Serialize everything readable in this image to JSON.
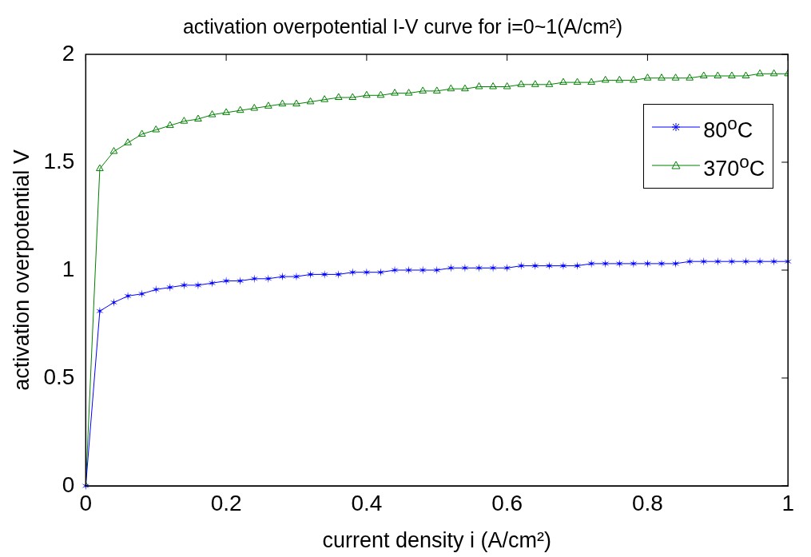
{
  "chart_data": {
    "type": "line",
    "title": "activation overpotential I-V curve for i=0~1(A/cm²)",
    "xlabel": "current density i (A/cm²)",
    "ylabel": "activation overpotential V",
    "x": [
      0,
      0.02,
      0.04,
      0.06,
      0.08,
      0.1,
      0.12,
      0.14,
      0.16,
      0.18,
      0.2,
      0.22,
      0.24,
      0.26,
      0.28,
      0.3,
      0.32,
      0.34,
      0.36,
      0.38,
      0.4,
      0.42,
      0.44,
      0.46,
      0.48,
      0.5,
      0.52,
      0.54,
      0.56,
      0.58,
      0.6,
      0.62,
      0.64,
      0.66,
      0.68,
      0.7,
      0.72,
      0.74,
      0.76,
      0.78,
      0.8,
      0.82,
      0.84,
      0.86,
      0.88,
      0.9,
      0.92,
      0.94,
      0.96,
      0.98,
      1
    ],
    "series": [
      {
        "name": "80$^{o}$C",
        "color": "#0000ff",
        "marker": "cross",
        "values": [
          0,
          0.81,
          0.85,
          0.88,
          0.89,
          0.91,
          0.92,
          0.93,
          0.93,
          0.94,
          0.95,
          0.95,
          0.96,
          0.96,
          0.97,
          0.97,
          0.98,
          0.98,
          0.98,
          0.99,
          0.99,
          0.99,
          1.0,
          1.0,
          1.0,
          1.0,
          1.01,
          1.01,
          1.01,
          1.01,
          1.01,
          1.02,
          1.02,
          1.02,
          1.02,
          1.02,
          1.03,
          1.03,
          1.03,
          1.03,
          1.03,
          1.03,
          1.03,
          1.04,
          1.04,
          1.04,
          1.04,
          1.04,
          1.04,
          1.04,
          1.04
        ]
      },
      {
        "name": "370$^{o}$C",
        "color": "#008000",
        "marker": "triangle",
        "values": [
          0,
          1.47,
          1.55,
          1.59,
          1.63,
          1.65,
          1.67,
          1.69,
          1.7,
          1.72,
          1.73,
          1.74,
          1.75,
          1.76,
          1.77,
          1.77,
          1.78,
          1.79,
          1.8,
          1.8,
          1.81,
          1.81,
          1.82,
          1.82,
          1.83,
          1.83,
          1.84,
          1.84,
          1.85,
          1.85,
          1.85,
          1.86,
          1.86,
          1.86,
          1.87,
          1.87,
          1.87,
          1.88,
          1.88,
          1.88,
          1.89,
          1.89,
          1.89,
          1.89,
          1.9,
          1.9,
          1.9,
          1.9,
          1.91,
          1.91,
          1.91
        ]
      }
    ],
    "xlim": [
      0,
      1
    ],
    "xticks": [
      0,
      0.2,
      0.4,
      0.6,
      0.8,
      1
    ],
    "ylim": [
      0,
      2
    ],
    "yticks": [
      0,
      0.5,
      1,
      1.5,
      2
    ],
    "grid": false,
    "legend": "top right",
    "line_style": "solid"
  }
}
